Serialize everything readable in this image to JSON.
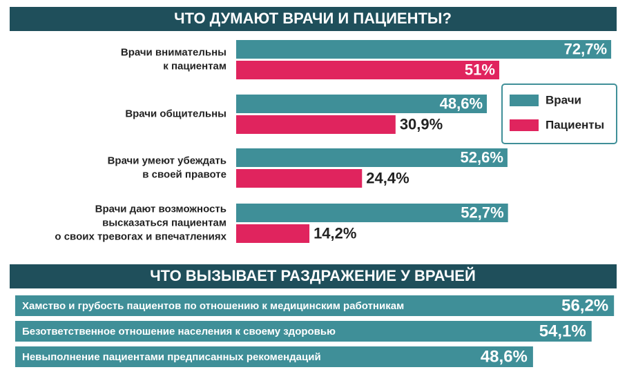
{
  "chart_data": [
    {
      "type": "grouped-hbar",
      "title": "ЧТО ДУМАЮТ ВРАЧИ И ПАЦИЕНТЫ?",
      "categories": [
        [
          "Врачи внимательны",
          "к пациентам"
        ],
        [
          "Врачи общительны"
        ],
        [
          "Врачи умеют убеждать",
          "в своей правоте"
        ],
        [
          "Врачи дают возможность",
          "высказаться пациентам",
          "о своих тревогах и впечатлениях"
        ]
      ],
      "series": [
        {
          "name": "Врачи",
          "color": "#3f8f98",
          "values": [
            72.7,
            48.6,
            52.6,
            52.7
          ],
          "value_labels": [
            "72,7%",
            "48,6%",
            "52,6%",
            "52,7%"
          ]
        },
        {
          "name": "Пациенты",
          "color": "#e0245e",
          "values": [
            51,
            30.9,
            24.4,
            14.2
          ],
          "value_labels": [
            "51%",
            "30,9%",
            "24,4%",
            "14,2%"
          ]
        }
      ],
      "legend": "right"
    },
    {
      "type": "hbar",
      "title": "ЧТО ВЫЗЫВАЕТ РАЗДРАЖЕНИЕ У ВРАЧЕЙ",
      "color": "#3f8f98",
      "categories": [
        "Хамство и грубость пациентов по отношению к медицинским работникам",
        "Безответственное отношение населения к своему здоровью",
        "Невыполнение пациентами предписанных рекомендаций"
      ],
      "values": [
        56.2,
        54.1,
        48.6
      ],
      "value_labels": [
        "56,2%",
        "54,1%",
        "48,6%"
      ]
    }
  ]
}
